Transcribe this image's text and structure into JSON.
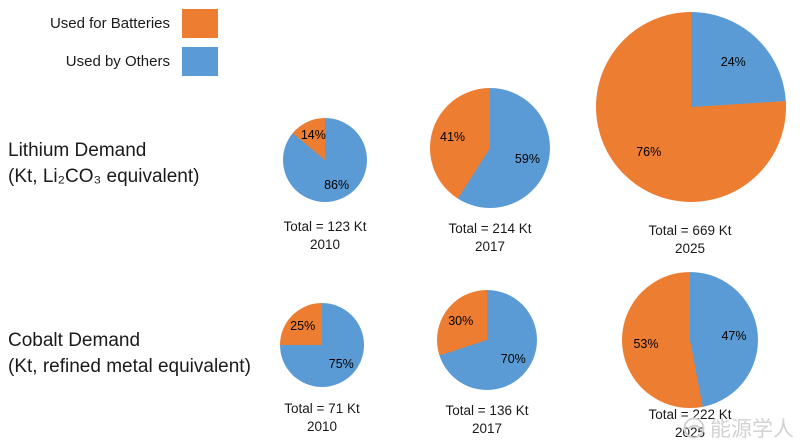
{
  "legend": {
    "items": [
      {
        "label": "Used for Batteries",
        "color": "#ED7D31"
      },
      {
        "label": "Used by Others",
        "color": "#5B9BD5"
      }
    ]
  },
  "watermark": {
    "text": "能源学人"
  },
  "chart_data": [
    {
      "type": "pie",
      "title": "Lithium Demand",
      "subtitle": "(Kt, Li₂CO₃ equivalent)",
      "legend": [
        "Used for Batteries",
        "Used by Others"
      ],
      "colors": [
        "#ED7D31",
        "#5B9BD5"
      ],
      "legend_position": "top-left",
      "pies": [
        {
          "year": "2010",
          "total_kt": 123,
          "total_label": "Total = 123 Kt",
          "slices": [
            {
              "label": "Used for Batteries",
              "pct": 14
            },
            {
              "label": "Used by Others",
              "pct": 86
            }
          ]
        },
        {
          "year": "2017",
          "total_kt": 214,
          "total_label": "Total = 214 Kt",
          "slices": [
            {
              "label": "Used for Batteries",
              "pct": 41
            },
            {
              "label": "Used by Others",
              "pct": 59
            }
          ]
        },
        {
          "year": "2025",
          "total_kt": 669,
          "total_label": "Total = 669 Kt",
          "slices": [
            {
              "label": "Used for Batteries",
              "pct": 76
            },
            {
              "label": "Used by Others",
              "pct": 24
            }
          ]
        }
      ]
    },
    {
      "type": "pie",
      "title": "Cobalt Demand",
      "subtitle": "(Kt, refined metal equivalent)",
      "legend": [
        "Used for Batteries",
        "Used by Others"
      ],
      "colors": [
        "#ED7D31",
        "#5B9BD5"
      ],
      "legend_position": "top-left",
      "pies": [
        {
          "year": "2010",
          "total_kt": 71,
          "total_label": "Total = 71 Kt",
          "slices": [
            {
              "label": "Used for Batteries",
              "pct": 25
            },
            {
              "label": "Used by Others",
              "pct": 75
            }
          ]
        },
        {
          "year": "2017",
          "total_kt": 136,
          "total_label": "Total = 136 Kt",
          "slices": [
            {
              "label": "Used for Batteries",
              "pct": 30
            },
            {
              "label": "Used by Others",
              "pct": 70
            }
          ]
        },
        {
          "year": "2025",
          "total_kt": 222,
          "total_label": "Total = 222 Kt",
          "slices": [
            {
              "label": "Used for Batteries",
              "pct": 53
            },
            {
              "label": "Used by Others",
              "pct": 47
            }
          ]
        }
      ]
    }
  ]
}
